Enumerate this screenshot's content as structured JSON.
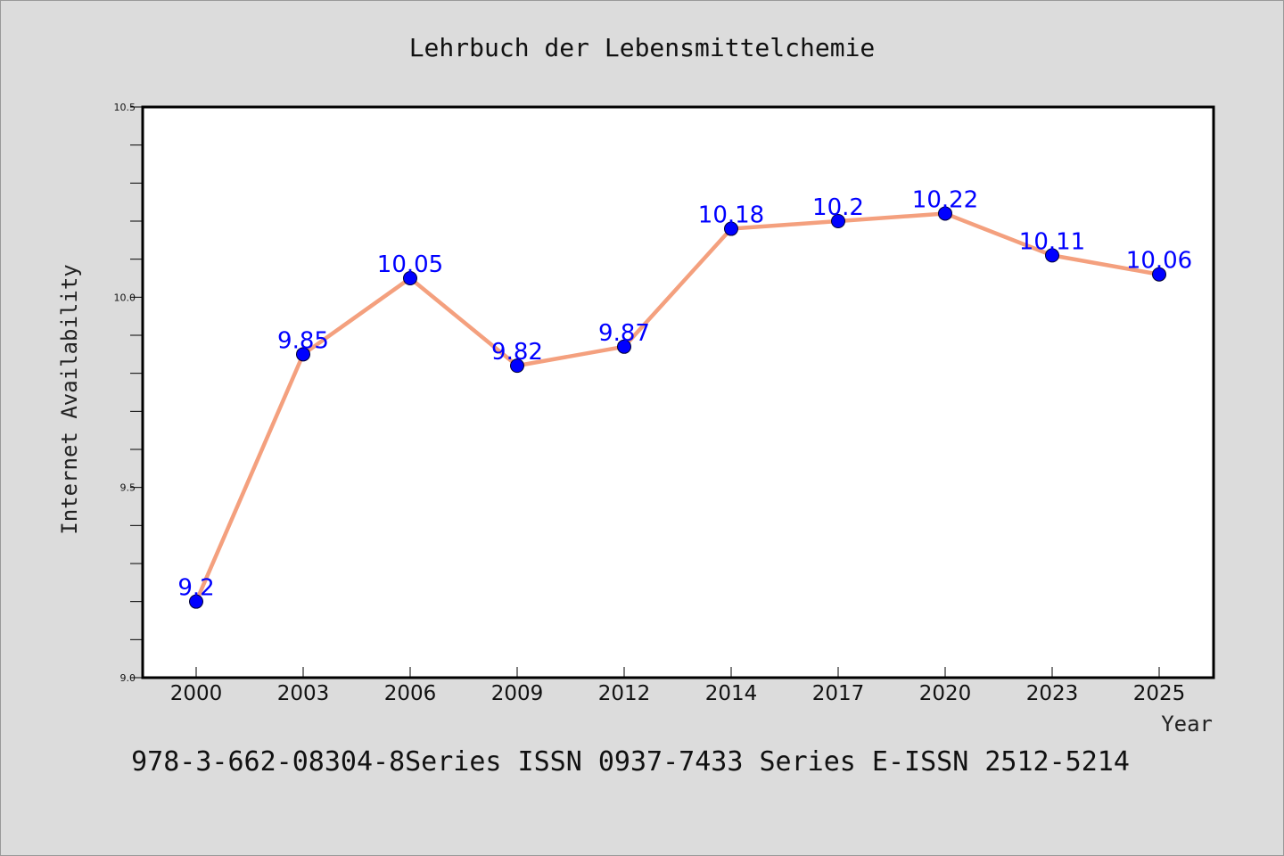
{
  "chart_data": {
    "type": "line",
    "title": "Lehrbuch der Lebensmittelchemie",
    "xlabel": "Year",
    "ylabel": "Internet Availability",
    "categories": [
      "2000",
      "2003",
      "2006",
      "2009",
      "2012",
      "2014",
      "2017",
      "2020",
      "2023",
      "2025"
    ],
    "series": [
      {
        "values": [
          9.2,
          9.85,
          10.05,
          9.82,
          9.87,
          10.18,
          10.2,
          10.22,
          10.11,
          10.06
        ],
        "data_labels": [
          "9.2",
          "9.85",
          "10.05",
          "9.82",
          "9.87",
          "10.18",
          "10.2",
          "10.22",
          "10.11",
          "10.06"
        ],
        "line_color": "#f4a07e",
        "marker_color": "#0000ff"
      }
    ],
    "ylim": [
      9.0,
      10.5
    ],
    "yticks": [
      "9.0",
      "9.5",
      "10.0",
      "10.5"
    ],
    "grid": false
  },
  "footer": {
    "text": "978-3-662-08304-8Series ISSN 0937-7433 Series E-ISSN 2512-5214"
  },
  "colors": {
    "background": "#dcdcdc",
    "plot_background": "#ffffff"
  }
}
